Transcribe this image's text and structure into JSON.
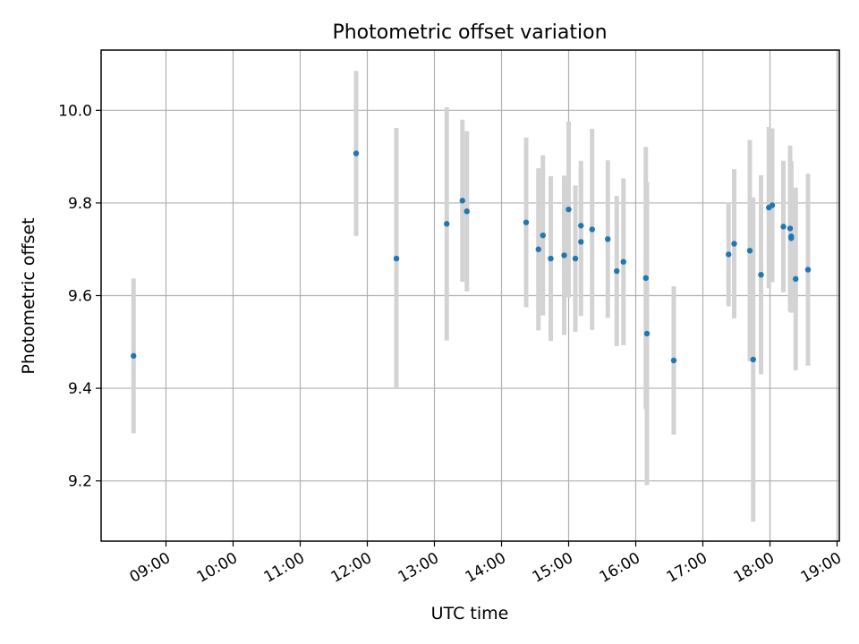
{
  "chart_data": {
    "type": "scatter",
    "title": "Photometric offset variation",
    "xlabel": "UTC time",
    "ylabel": "Photometric offset",
    "x_ticks": [
      "09:00",
      "10:00",
      "11:00",
      "12:00",
      "13:00",
      "14:00",
      "15:00",
      "16:00",
      "17:00",
      "18:00",
      "19:00"
    ],
    "y_ticks": [
      "9.2",
      "9.4",
      "9.6",
      "9.8",
      "10.0"
    ],
    "xlim": [
      "08:02",
      "19:02"
    ],
    "ylim": [
      9.07,
      10.13
    ],
    "grid": true,
    "point_color": "#1f77b4",
    "errorbar_color": "#d3d3d3",
    "points": [
      {
        "time": "08:31",
        "y": 9.47,
        "err": 0.167
      },
      {
        "time": "11:50",
        "y": 9.907,
        "err": 0.178
      },
      {
        "time": "12:26",
        "y": 9.68,
        "err": 0.282
      },
      {
        "time": "13:11",
        "y": 9.755,
        "err": 0.252
      },
      {
        "time": "13:25",
        "y": 9.805,
        "err": 0.175
      },
      {
        "time": "13:29",
        "y": 9.782,
        "err": 0.173
      },
      {
        "time": "14:22",
        "y": 9.758,
        "err": 0.183
      },
      {
        "time": "14:33",
        "y": 9.7,
        "err": 0.175
      },
      {
        "time": "14:37",
        "y": 9.73,
        "err": 0.173
      },
      {
        "time": "14:44",
        "y": 9.68,
        "err": 0.178
      },
      {
        "time": "14:56",
        "y": 9.687,
        "err": 0.172
      },
      {
        "time": "15:00",
        "y": 9.786,
        "err": 0.19
      },
      {
        "time": "15:06",
        "y": 9.68,
        "err": 0.158
      },
      {
        "time": "15:11",
        "y": 9.716,
        "err": 0.16
      },
      {
        "time": "15:11",
        "y": 9.751,
        "err": 0.14
      },
      {
        "time": "15:21",
        "y": 9.743,
        "err": 0.217
      },
      {
        "time": "15:35",
        "y": 9.722,
        "err": 0.17
      },
      {
        "time": "15:43",
        "y": 9.653,
        "err": 0.162
      },
      {
        "time": "15:49",
        "y": 9.673,
        "err": 0.18
      },
      {
        "time": "16:09",
        "y": 9.638,
        "err": 0.283
      },
      {
        "time": "16:10",
        "y": 9.518,
        "err": 0.327
      },
      {
        "time": "16:34",
        "y": 9.46,
        "err": 0.16
      },
      {
        "time": "17:23",
        "y": 9.689,
        "err": 0.112
      },
      {
        "time": "17:28",
        "y": 9.712,
        "err": 0.161
      },
      {
        "time": "17:42",
        "y": 9.697,
        "err": 0.239
      },
      {
        "time": "17:45",
        "y": 9.462,
        "err": 0.35
      },
      {
        "time": "17:52",
        "y": 9.645,
        "err": 0.215
      },
      {
        "time": "17:59",
        "y": 9.79,
        "err": 0.174
      },
      {
        "time": "18:02",
        "y": 9.795,
        "err": 0.166
      },
      {
        "time": "18:12",
        "y": 9.749,
        "err": 0.142
      },
      {
        "time": "18:18",
        "y": 9.745,
        "err": 0.179
      },
      {
        "time": "18:19",
        "y": 9.728,
        "err": 0.162
      },
      {
        "time": "18:19",
        "y": 9.724,
        "err": 0.161
      },
      {
        "time": "18:23",
        "y": 9.636,
        "err": 0.197
      },
      {
        "time": "18:34",
        "y": 9.656,
        "err": 0.207
      }
    ]
  }
}
